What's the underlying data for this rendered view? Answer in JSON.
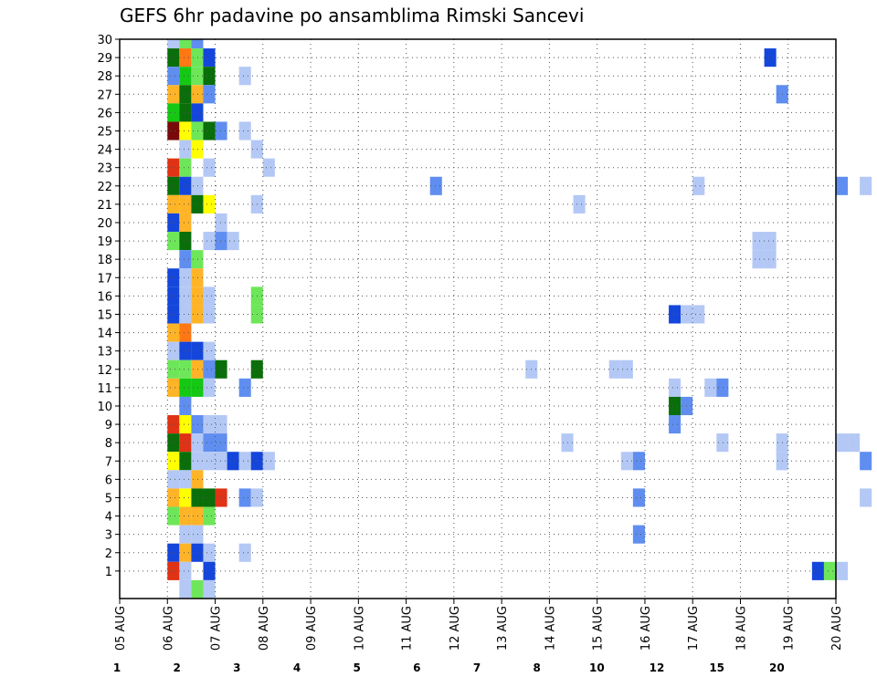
{
  "chart_data": {
    "type": "heatmap",
    "title": "GEFS 6hr padavine po ansamblima Rimski Sancevi",
    "x_ticks": [
      "05 AUG",
      "06 AUG",
      "07 AUG",
      "08 AUG",
      "09 AUG",
      "10 AUG",
      "11 AUG",
      "12 AUG",
      "13 AUG",
      "14 AUG",
      "15 AUG",
      "16 AUG",
      "17 AUG",
      "18 AUG",
      "19 AUG",
      "20 AUG"
    ],
    "y_ticks": [
      "1",
      "2",
      "3",
      "4",
      "5",
      "6",
      "7",
      "8",
      "9",
      "10",
      "11",
      "12",
      "13",
      "14",
      "15",
      "16",
      "17",
      "18",
      "19",
      "20",
      "21",
      "22",
      "23",
      "24",
      "25",
      "26",
      "27",
      "28",
      "29",
      "30"
    ],
    "x_range": [
      "05 AUG 00Z",
      "20 AUG 00Z"
    ],
    "y_range": [
      0,
      30
    ],
    "x_step_hours": 6,
    "grid": true,
    "colorbar": {
      "labels": [
        "1",
        "2",
        "3",
        "4",
        "5",
        "6",
        "7",
        "8",
        "10",
        "12",
        "15",
        "20"
      ],
      "colors": [
        "#b4c8f5",
        "#5f8ef0",
        "#1446dc",
        "#6ee65a",
        "#14c814",
        "#0a6e0a",
        "#ffff00",
        "#ffb428",
        "#ff7814",
        "#e03214",
        "#780a0a"
      ]
    },
    "cells": [
      {
        "member": 30,
        "x": "06 AUG 06Z",
        "level": 1
      },
      {
        "member": 30,
        "x": "06 AUG 12Z",
        "level": 4
      },
      {
        "member": 30,
        "x": "06 AUG 18Z",
        "level": 2
      },
      {
        "member": 29,
        "x": "06 AUG 06Z",
        "level": 6
      },
      {
        "member": 29,
        "x": "06 AUG 12Z",
        "level": 9
      },
      {
        "member": 29,
        "x": "06 AUG 18Z",
        "level": 4
      },
      {
        "member": 29,
        "x": "07 AUG 00Z",
        "level": 3
      },
      {
        "member": 29,
        "x": "18 AUG 18Z",
        "level": 3
      },
      {
        "member": 28,
        "x": "06 AUG 06Z",
        "level": 2
      },
      {
        "member": 28,
        "x": "06 AUG 12Z",
        "level": 5
      },
      {
        "member": 28,
        "x": "06 AUG 18Z",
        "level": 4
      },
      {
        "member": 28,
        "x": "07 AUG 00Z",
        "level": 6
      },
      {
        "member": 28,
        "x": "07 AUG 18Z",
        "level": 1
      },
      {
        "member": 27,
        "x": "06 AUG 06Z",
        "level": 8
      },
      {
        "member": 27,
        "x": "06 AUG 12Z",
        "level": 6
      },
      {
        "member": 27,
        "x": "06 AUG 18Z",
        "level": 8
      },
      {
        "member": 27,
        "x": "07 AUG 00Z",
        "level": 2
      },
      {
        "member": 27,
        "x": "19 AUG 00Z",
        "level": 2
      },
      {
        "member": 26,
        "x": "06 AUG 06Z",
        "level": 5
      },
      {
        "member": 26,
        "x": "06 AUG 12Z",
        "level": 6
      },
      {
        "member": 26,
        "x": "06 AUG 18Z",
        "level": 3
      },
      {
        "member": 25,
        "x": "06 AUG 06Z",
        "level": 11
      },
      {
        "member": 25,
        "x": "06 AUG 12Z",
        "level": 7
      },
      {
        "member": 25,
        "x": "06 AUG 18Z",
        "level": 4
      },
      {
        "member": 25,
        "x": "07 AUG 00Z",
        "level": 6
      },
      {
        "member": 25,
        "x": "07 AUG 06Z",
        "level": 2
      },
      {
        "member": 25,
        "x": "07 AUG 18Z",
        "level": 1
      },
      {
        "member": 24,
        "x": "06 AUG 12Z",
        "level": 1
      },
      {
        "member": 24,
        "x": "06 AUG 18Z",
        "level": 7
      },
      {
        "member": 24,
        "x": "08 AUG 00Z",
        "level": 1
      },
      {
        "member": 23,
        "x": "06 AUG 06Z",
        "level": 10
      },
      {
        "member": 23,
        "x": "06 AUG 12Z",
        "level": 4
      },
      {
        "member": 23,
        "x": "07 AUG 00Z",
        "level": 1
      },
      {
        "member": 23,
        "x": "08 AUG 06Z",
        "level": 1
      },
      {
        "member": 22,
        "x": "06 AUG 06Z",
        "level": 6
      },
      {
        "member": 22,
        "x": "06 AUG 12Z",
        "level": 3
      },
      {
        "member": 22,
        "x": "06 AUG 18Z",
        "level": 1
      },
      {
        "member": 22,
        "x": "11 AUG 18Z",
        "level": 2
      },
      {
        "member": 22,
        "x": "17 AUG 06Z",
        "level": 1
      },
      {
        "member": 22,
        "x": "20 AUG 06Z",
        "level": 2
      },
      {
        "member": 22,
        "x": "20 AUG 18Z",
        "level": 1
      },
      {
        "member": 21,
        "x": "06 AUG 06Z",
        "level": 8
      },
      {
        "member": 21,
        "x": "06 AUG 12Z",
        "level": 8
      },
      {
        "member": 21,
        "x": "06 AUG 18Z",
        "level": 6
      },
      {
        "member": 21,
        "x": "07 AUG 00Z",
        "level": 7
      },
      {
        "member": 21,
        "x": "08 AUG 00Z",
        "level": 1
      },
      {
        "member": 21,
        "x": "14 AUG 18Z",
        "level": 1
      },
      {
        "member": 20,
        "x": "06 AUG 06Z",
        "level": 3
      },
      {
        "member": 20,
        "x": "06 AUG 12Z",
        "level": 8
      },
      {
        "member": 20,
        "x": "07 AUG 06Z",
        "level": 1
      },
      {
        "member": 19,
        "x": "06 AUG 06Z",
        "level": 4
      },
      {
        "member": 19,
        "x": "06 AUG 12Z",
        "level": 6
      },
      {
        "member": 19,
        "x": "07 AUG 00Z",
        "level": 1
      },
      {
        "member": 19,
        "x": "07 AUG 06Z",
        "level": 2
      },
      {
        "member": 19,
        "x": "07 AUG 12Z",
        "level": 1
      },
      {
        "member": 19,
        "x": "18 AUG 12Z",
        "level": 1
      },
      {
        "member": 19,
        "x": "18 AUG 18Z",
        "level": 1
      },
      {
        "member": 18,
        "x": "06 AUG 12Z",
        "level": 2
      },
      {
        "member": 18,
        "x": "06 AUG 18Z",
        "level": 4
      },
      {
        "member": 18,
        "x": "18 AUG 12Z",
        "level": 1
      },
      {
        "member": 18,
        "x": "18 AUG 18Z",
        "level": 1
      },
      {
        "member": 17,
        "x": "06 AUG 06Z",
        "level": 3
      },
      {
        "member": 17,
        "x": "06 AUG 12Z",
        "level": 1
      },
      {
        "member": 17,
        "x": "06 AUG 18Z",
        "level": 8
      },
      {
        "member": 16,
        "x": "06 AUG 06Z",
        "level": 3
      },
      {
        "member": 16,
        "x": "06 AUG 12Z",
        "level": 1
      },
      {
        "member": 16,
        "x": "06 AUG 18Z",
        "level": 8
      },
      {
        "member": 16,
        "x": "07 AUG 00Z",
        "level": 1
      },
      {
        "member": 16,
        "x": "08 AUG 00Z",
        "level": 4
      },
      {
        "member": 15,
        "x": "06 AUG 06Z",
        "level": 3
      },
      {
        "member": 15,
        "x": "06 AUG 12Z",
        "level": 1
      },
      {
        "member": 15,
        "x": "06 AUG 18Z",
        "level": 8
      },
      {
        "member": 15,
        "x": "07 AUG 00Z",
        "level": 1
      },
      {
        "member": 15,
        "x": "08 AUG 00Z",
        "level": 4
      },
      {
        "member": 15,
        "x": "16 AUG 18Z",
        "level": 3
      },
      {
        "member": 15,
        "x": "17 AUG 00Z",
        "level": 1
      },
      {
        "member": 15,
        "x": "17 AUG 06Z",
        "level": 1
      },
      {
        "member": 14,
        "x": "06 AUG 06Z",
        "level": 8
      },
      {
        "member": 14,
        "x": "06 AUG 12Z",
        "level": 9
      },
      {
        "member": 13,
        "x": "06 AUG 06Z",
        "level": 1
      },
      {
        "member": 13,
        "x": "06 AUG 12Z",
        "level": 3
      },
      {
        "member": 13,
        "x": "06 AUG 18Z",
        "level": 3
      },
      {
        "member": 13,
        "x": "07 AUG 00Z",
        "level": 1
      },
      {
        "member": 12,
        "x": "06 AUG 06Z",
        "level": 4
      },
      {
        "member": 12,
        "x": "06 AUG 12Z",
        "level": 4
      },
      {
        "member": 12,
        "x": "06 AUG 18Z",
        "level": 8
      },
      {
        "member": 12,
        "x": "07 AUG 00Z",
        "level": 2
      },
      {
        "member": 12,
        "x": "07 AUG 06Z",
        "level": 6
      },
      {
        "member": 12,
        "x": "08 AUG 00Z",
        "level": 6
      },
      {
        "member": 12,
        "x": "13 AUG 18Z",
        "level": 1
      },
      {
        "member": 12,
        "x": "15 AUG 12Z",
        "level": 1
      },
      {
        "member": 12,
        "x": "15 AUG 18Z",
        "level": 1
      },
      {
        "member": 11,
        "x": "06 AUG 06Z",
        "level": 8
      },
      {
        "member": 11,
        "x": "06 AUG 12Z",
        "level": 5
      },
      {
        "member": 11,
        "x": "06 AUG 18Z",
        "level": 5
      },
      {
        "member": 11,
        "x": "07 AUG 00Z",
        "level": 1
      },
      {
        "member": 11,
        "x": "07 AUG 18Z",
        "level": 2
      },
      {
        "member": 11,
        "x": "16 AUG 18Z",
        "level": 1
      },
      {
        "member": 11,
        "x": "17 AUG 12Z",
        "level": 1
      },
      {
        "member": 11,
        "x": "17 AUG 18Z",
        "level": 2
      },
      {
        "member": 10,
        "x": "06 AUG 12Z",
        "level": 2
      },
      {
        "member": 10,
        "x": "16 AUG 18Z",
        "level": 6
      },
      {
        "member": 10,
        "x": "17 AUG 00Z",
        "level": 2
      },
      {
        "member": 9,
        "x": "06 AUG 06Z",
        "level": 10
      },
      {
        "member": 9,
        "x": "06 AUG 12Z",
        "level": 7
      },
      {
        "member": 9,
        "x": "06 AUG 18Z",
        "level": 2
      },
      {
        "member": 9,
        "x": "07 AUG 00Z",
        "level": 1
      },
      {
        "member": 9,
        "x": "07 AUG 06Z",
        "level": 1
      },
      {
        "member": 9,
        "x": "16 AUG 18Z",
        "level": 2
      },
      {
        "member": 8,
        "x": "06 AUG 06Z",
        "level": 6
      },
      {
        "member": 8,
        "x": "06 AUG 12Z",
        "level": 10
      },
      {
        "member": 8,
        "x": "06 AUG 18Z",
        "level": 1
      },
      {
        "member": 8,
        "x": "07 AUG 00Z",
        "level": 2
      },
      {
        "member": 8,
        "x": "07 AUG 06Z",
        "level": 2
      },
      {
        "member": 8,
        "x": "14 AUG 12Z",
        "level": 1
      },
      {
        "member": 8,
        "x": "17 AUG 18Z",
        "level": 1
      },
      {
        "member": 8,
        "x": "19 AUG 00Z",
        "level": 1
      },
      {
        "member": 8,
        "x": "20 AUG 06Z",
        "level": 1
      },
      {
        "member": 8,
        "x": "20 AUG 12Z",
        "level": 1
      },
      {
        "member": 7,
        "x": "06 AUG 06Z",
        "level": 7
      },
      {
        "member": 7,
        "x": "06 AUG 12Z",
        "level": 6
      },
      {
        "member": 7,
        "x": "06 AUG 18Z",
        "level": 1
      },
      {
        "member": 7,
        "x": "07 AUG 00Z",
        "level": 1
      },
      {
        "member": 7,
        "x": "07 AUG 06Z",
        "level": 1
      },
      {
        "member": 7,
        "x": "07 AUG 12Z",
        "level": 3
      },
      {
        "member": 7,
        "x": "07 AUG 18Z",
        "level": 1
      },
      {
        "member": 7,
        "x": "08 AUG 00Z",
        "level": 3
      },
      {
        "member": 7,
        "x": "08 AUG 06Z",
        "level": 1
      },
      {
        "member": 7,
        "x": "15 AUG 18Z",
        "level": 1
      },
      {
        "member": 7,
        "x": "16 AUG 00Z",
        "level": 2
      },
      {
        "member": 7,
        "x": "19 AUG 00Z",
        "level": 1
      },
      {
        "member": 7,
        "x": "20 AUG 18Z",
        "level": 2
      },
      {
        "member": 6,
        "x": "06 AUG 06Z",
        "level": 1
      },
      {
        "member": 6,
        "x": "06 AUG 12Z",
        "level": 1
      },
      {
        "member": 6,
        "x": "06 AUG 18Z",
        "level": 8
      },
      {
        "member": 5,
        "x": "06 AUG 06Z",
        "level": 8
      },
      {
        "member": 5,
        "x": "06 AUG 12Z",
        "level": 7
      },
      {
        "member": 5,
        "x": "06 AUG 18Z",
        "level": 6
      },
      {
        "member": 5,
        "x": "07 AUG 00Z",
        "level": 6
      },
      {
        "member": 5,
        "x": "07 AUG 06Z",
        "level": 10
      },
      {
        "member": 5,
        "x": "07 AUG 18Z",
        "level": 2
      },
      {
        "member": 5,
        "x": "08 AUG 00Z",
        "level": 1
      },
      {
        "member": 5,
        "x": "16 AUG 00Z",
        "level": 2
      },
      {
        "member": 5,
        "x": "20 AUG 18Z",
        "level": 1
      },
      {
        "member": 4,
        "x": "06 AUG 06Z",
        "level": 4
      },
      {
        "member": 4,
        "x": "06 AUG 12Z",
        "level": 8
      },
      {
        "member": 4,
        "x": "06 AUG 18Z",
        "level": 8
      },
      {
        "member": 4,
        "x": "07 AUG 00Z",
        "level": 4
      },
      {
        "member": 3,
        "x": "06 AUG 12Z",
        "level": 1
      },
      {
        "member": 3,
        "x": "06 AUG 18Z",
        "level": 1
      },
      {
        "member": 3,
        "x": "16 AUG 00Z",
        "level": 2
      },
      {
        "member": 2,
        "x": "06 AUG 06Z",
        "level": 3
      },
      {
        "member": 2,
        "x": "06 AUG 12Z",
        "level": 8
      },
      {
        "member": 2,
        "x": "06 AUG 18Z",
        "level": 3
      },
      {
        "member": 2,
        "x": "07 AUG 00Z",
        "level": 1
      },
      {
        "member": 2,
        "x": "07 AUG 18Z",
        "level": 1
      },
      {
        "member": 1,
        "x": "06 AUG 06Z",
        "level": 10
      },
      {
        "member": 1,
        "x": "06 AUG 12Z",
        "level": 1
      },
      {
        "member": 1,
        "x": "07 AUG 00Z",
        "level": 3
      },
      {
        "member": 1,
        "x": "19 AUG 18Z",
        "level": 3
      },
      {
        "member": 1,
        "x": "20 AUG 00Z",
        "level": 4
      },
      {
        "member": 1,
        "x": "20 AUG 06Z",
        "level": 1
      },
      {
        "member": 0,
        "x": "06 AUG 12Z",
        "level": 1
      },
      {
        "member": 0,
        "x": "06 AUG 18Z",
        "level": 4
      },
      {
        "member": 0,
        "x": "07 AUG 00Z",
        "level": 1
      }
    ]
  }
}
